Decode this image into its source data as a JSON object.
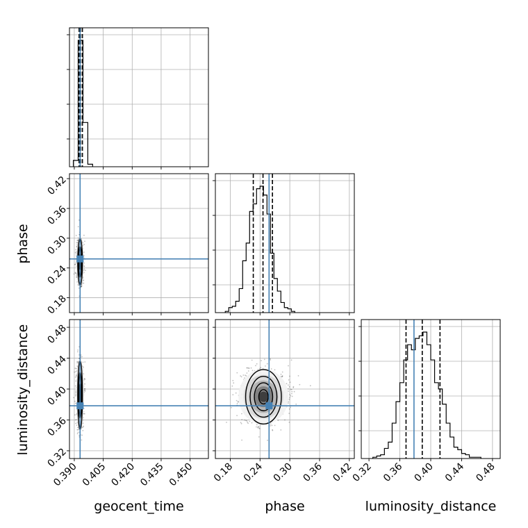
{
  "chart_data": {
    "type": "corner",
    "parameters": [
      "geocent_time",
      "phase",
      "luminosity_distance"
    ],
    "axis_labels": [
      "geocent_time",
      "phase",
      "luminosity_distance"
    ],
    "ranges": {
      "geocent_time": [
        0.3875,
        0.4595
      ],
      "phase": [
        0.15,
        0.43
      ],
      "luminosity_distance": [
        0.31,
        0.49
      ]
    },
    "ticks": {
      "geocent_time": [
        {
          "v": 0.39,
          "label": "0.390"
        },
        {
          "v": 0.405,
          "label": "0.405"
        },
        {
          "v": 0.42,
          "label": "0.420"
        },
        {
          "v": 0.435,
          "label": "0.435"
        },
        {
          "v": 0.45,
          "label": "0.450"
        }
      ],
      "phase": [
        {
          "v": 0.18,
          "label": "0.18"
        },
        {
          "v": 0.24,
          "label": "0.24"
        },
        {
          "v": 0.3,
          "label": "0.30"
        },
        {
          "v": 0.36,
          "label": "0.36"
        },
        {
          "v": 0.42,
          "label": "0.42"
        }
      ],
      "luminosity_distance": [
        {
          "v": 0.32,
          "label": "0.32"
        },
        {
          "v": 0.36,
          "label": "0.36"
        },
        {
          "v": 0.4,
          "label": "0.40"
        },
        {
          "v": 0.44,
          "label": "0.44"
        },
        {
          "v": 0.48,
          "label": "0.48"
        }
      ]
    },
    "injection": {
      "geocent_time": 0.393,
      "phase": 0.2582,
      "luminosity_distance": 0.3783
    },
    "quantiles": {
      "geocent_time": [
        0.3925,
        0.3932,
        0.3942
      ],
      "phase": [
        0.2264,
        0.246,
        0.265
      ],
      "luminosity_distance": [
        0.368,
        0.389,
        0.412
      ]
    },
    "histograms": {
      "geocent_time": {
        "edges": [
          0.3895,
          0.392,
          0.3945,
          0.397,
          0.3995
        ],
        "counts": [
          0.05,
          1.0,
          0.35,
          0.02
        ]
      },
      "phase": {
        "edges": [
          0.17,
          0.177,
          0.184,
          0.191,
          0.198,
          0.205,
          0.212,
          0.219,
          0.226,
          0.233,
          0.24,
          0.247,
          0.254,
          0.261,
          0.268,
          0.275,
          0.282,
          0.289,
          0.296,
          0.303,
          0.31
        ],
        "counts": [
          0.01,
          0.04,
          0.05,
          0.09,
          0.19,
          0.41,
          0.55,
          0.8,
          0.86,
          0.98,
          1.0,
          0.93,
          0.78,
          0.47,
          0.27,
          0.17,
          0.08,
          0.04,
          0.03,
          0.01
        ]
      },
      "luminosity_distance": {
        "edges": [
          0.325,
          0.33,
          0.335,
          0.34,
          0.345,
          0.35,
          0.355,
          0.36,
          0.365,
          0.37,
          0.375,
          0.38,
          0.385,
          0.39,
          0.395,
          0.4,
          0.405,
          0.41,
          0.415,
          0.42,
          0.425,
          0.43,
          0.435,
          0.44,
          0.445,
          0.45,
          0.455,
          0.46,
          0.465
        ],
        "counts": [
          0.01,
          0.02,
          0.03,
          0.08,
          0.13,
          0.28,
          0.45,
          0.6,
          0.78,
          0.9,
          0.86,
          0.95,
          0.97,
          1.0,
          0.9,
          0.78,
          0.6,
          0.55,
          0.43,
          0.28,
          0.17,
          0.09,
          0.07,
          0.04,
          0.03,
          0.01,
          0.01,
          0.01
        ]
      }
    },
    "posterior_2d": [
      {
        "x": "geocent_time",
        "y": "phase",
        "mean": [
          0.393,
          0.252
        ],
        "sd": [
          0.00085,
          0.02
        ],
        "levels": [
          0.00042,
          0.00082,
          0.00122
        ],
        "n_points": 900
      },
      {
        "x": "geocent_time",
        "y": "luminosity_distance",
        "mean": [
          0.393,
          0.392
        ],
        "sd": [
          0.00085,
          0.019
        ],
        "levels": [
          0.00042,
          0.00082,
          0.00122
        ],
        "n_points": 900
      },
      {
        "x": "phase",
        "y": "luminosity_distance",
        "mean": [
          0.247,
          0.39
        ],
        "sd": [
          0.021,
          0.015
        ],
        "levels": [
          0.0095,
          0.0185,
          0.027,
          0.036
        ],
        "n_points": 1500
      }
    ],
    "grid": true,
    "colors": {
      "injection": "#4682b4",
      "histogram": "#000000",
      "quantiles": "#000000",
      "samples": "#000000",
      "grid": "#b0b0b0"
    }
  }
}
